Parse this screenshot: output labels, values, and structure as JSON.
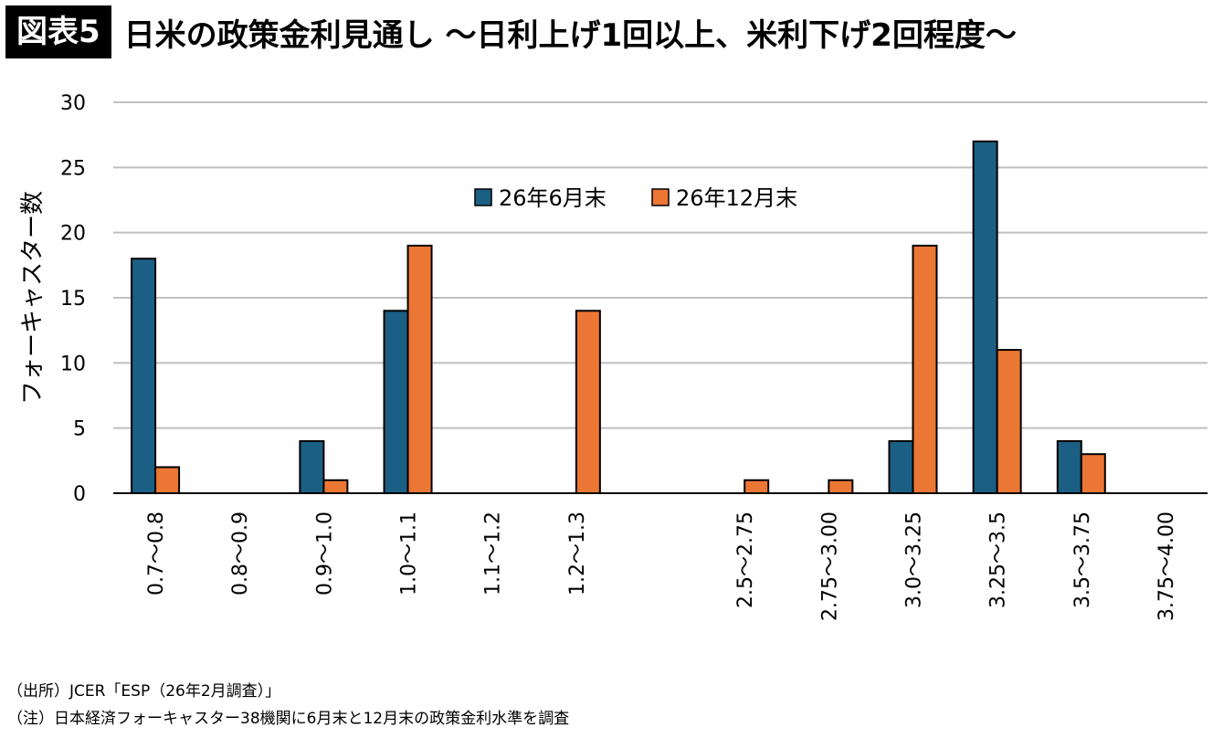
{
  "header": {
    "badge": "図表5",
    "title": "日米の政策金利見通し 〜日利上げ1回以上、米利下げ2回程度〜"
  },
  "colors": {
    "series1": "#1b6084",
    "series2": "#ec7734",
    "grid": "#bfbfbf",
    "axis": "#000000"
  },
  "chart_data": {
    "type": "bar",
    "title": "",
    "xlabel": "",
    "ylabel": "フォーキャスター数",
    "ylim": [
      0,
      30
    ],
    "yticks": [
      0,
      5,
      10,
      15,
      20,
      25,
      30
    ],
    "grid": true,
    "legend_position": "top-center",
    "categories": [
      "0.7〜0.8",
      "0.8〜0.9",
      "0.9〜1.0",
      "1.0〜1.1",
      "1.1〜1.2",
      "1.2〜1.3",
      "",
      "2.5〜2.75",
      "2.75〜3.00",
      "3.0〜3.25",
      "3.25〜3.5",
      "3.5〜3.75",
      "3.75〜4.00"
    ],
    "series": [
      {
        "name": "26年6月末",
        "values": [
          18,
          0,
          4,
          14,
          0,
          0,
          0,
          0,
          0,
          4,
          27,
          4,
          0
        ]
      },
      {
        "name": "26年12月末",
        "values": [
          2,
          0,
          1,
          19,
          0,
          14,
          0,
          1,
          1,
          19,
          11,
          3,
          0
        ]
      }
    ]
  },
  "notes": {
    "source": "（出所）JCER「ESP（26年2月調査）」",
    "note": "（注）日本経済フォーキャスター38機関に6月末と12月末の政策金利水準を調査"
  }
}
